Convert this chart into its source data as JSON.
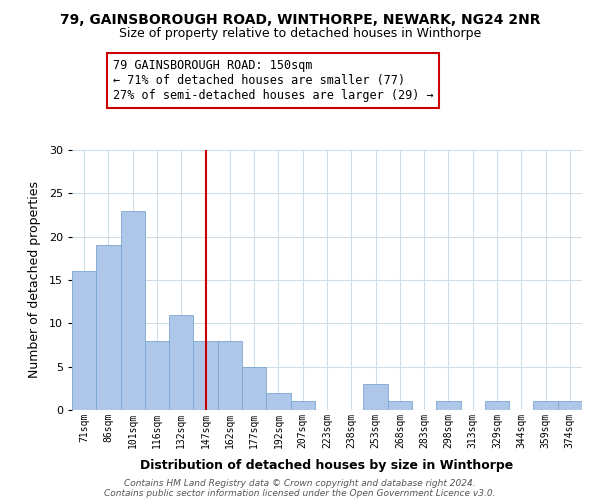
{
  "title_line1": "79, GAINSBOROUGH ROAD, WINTHORPE, NEWARK, NG24 2NR",
  "title_line2": "Size of property relative to detached houses in Winthorpe",
  "xlabel": "Distribution of detached houses by size in Winthorpe",
  "ylabel": "Number of detached properties",
  "bar_labels": [
    "71sqm",
    "86sqm",
    "101sqm",
    "116sqm",
    "132sqm",
    "147sqm",
    "162sqm",
    "177sqm",
    "192sqm",
    "207sqm",
    "223sqm",
    "238sqm",
    "253sqm",
    "268sqm",
    "283sqm",
    "298sqm",
    "313sqm",
    "329sqm",
    "344sqm",
    "359sqm",
    "374sqm"
  ],
  "bar_values": [
    16,
    19,
    23,
    8,
    11,
    8,
    8,
    5,
    2,
    1,
    0,
    0,
    3,
    1,
    0,
    1,
    0,
    1,
    0,
    1,
    1
  ],
  "bar_color": "#aec6e8",
  "bar_edge_color": "#7ba7d4",
  "vline_index": 5,
  "vline_color": "#cc0000",
  "annotation_text_line1": "79 GAINSBOROUGH ROAD: 150sqm",
  "annotation_text_line2": "← 71% of detached houses are smaller (77)",
  "annotation_text_line3": "27% of semi-detached houses are larger (29) →",
  "ylim": [
    0,
    30
  ],
  "yticks": [
    0,
    5,
    10,
    15,
    20,
    25,
    30
  ],
  "background_color": "#ffffff",
  "grid_color": "#d0dce8",
  "footer_line1": "Contains HM Land Registry data © Crown copyright and database right 2024.",
  "footer_line2": "Contains public sector information licensed under the Open Government Licence v3.0."
}
